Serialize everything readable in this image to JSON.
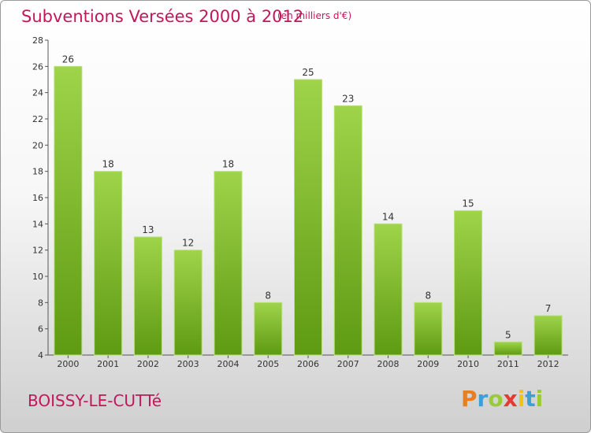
{
  "header": {
    "title": "Subventions Versées 2000 à 2012",
    "subtitle": "(en milliers d'€)"
  },
  "footer": {
    "commune": "BOISSY-LE-CUTTé",
    "logo": {
      "letters": [
        "P",
        "r",
        "o",
        "x",
        "i",
        "t",
        "i"
      ],
      "colors": [
        "#e67e22",
        "#3aa0d8",
        "#9c3",
        "#e53935",
        "#f1c40f",
        "#3aa0d8",
        "#9c3"
      ]
    }
  },
  "chart_data": {
    "type": "bar",
    "categories": [
      "2000",
      "2001",
      "2002",
      "2003",
      "2004",
      "2005",
      "2006",
      "2007",
      "2008",
      "2009",
      "2010",
      "2011",
      "2012"
    ],
    "values": [
      26,
      18,
      13,
      12,
      18,
      8,
      25,
      23,
      14,
      8,
      15,
      5,
      7
    ],
    "title": "Subventions Versées 2000 à 2012",
    "subtitle": "(en milliers d'€)",
    "ylim": [
      4,
      28
    ],
    "yticks": [
      4,
      6,
      8,
      10,
      12,
      14,
      16,
      18,
      20,
      22,
      24,
      26,
      28
    ],
    "grid": false,
    "bar_color": "#7fbf2a"
  }
}
